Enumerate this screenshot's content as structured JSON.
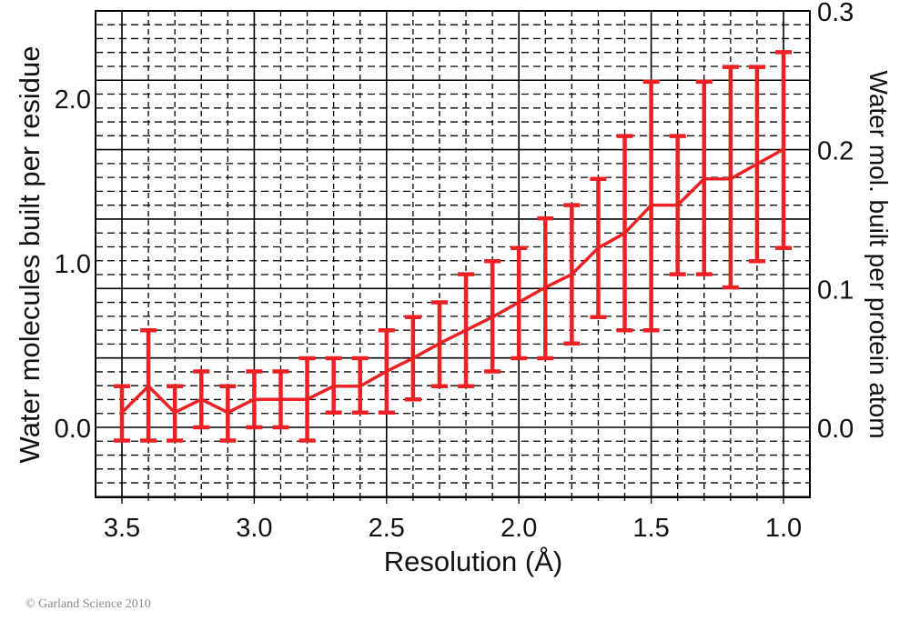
{
  "chart_data": {
    "type": "line",
    "title": "",
    "xlabel": "Resolution (Å)",
    "ylabel": "Water molecules built per residue",
    "ylabel_right": "Water mol. built per protein atom",
    "x_reversed": true,
    "xlim": [
      3.6,
      0.9
    ],
    "ylim": [
      -0.43,
      2.53
    ],
    "ylim_right": [
      -0.05,
      0.3
    ],
    "x_ticks": [
      "3.5",
      "3.0",
      "2.5",
      "2.0",
      "1.5",
      "1.0"
    ],
    "y_ticks_left": [
      "0.0",
      "1.0",
      "2.0"
    ],
    "y_ticks_right": [
      "0.0",
      "0.1",
      "0.2",
      "0.3"
    ],
    "grid": true,
    "series": [
      {
        "name": "Water molecules built per residue",
        "color": "#ED2024",
        "x": [
          3.5,
          3.4,
          3.3,
          3.2,
          3.1,
          3.0,
          2.9,
          2.8,
          2.7,
          2.6,
          2.5,
          2.4,
          2.3,
          2.2,
          2.1,
          2.0,
          1.9,
          1.8,
          1.7,
          1.6,
          1.5,
          1.4,
          1.3,
          1.2,
          1.1,
          1.0
        ],
        "values": [
          0.09,
          0.25,
          0.09,
          0.17,
          0.09,
          0.17,
          0.17,
          0.17,
          0.25,
          0.25,
          0.34,
          0.42,
          0.51,
          0.59,
          0.67,
          0.76,
          0.85,
          0.93,
          1.09,
          1.18,
          1.35,
          1.35,
          1.51,
          1.51,
          1.6,
          1.69
        ],
        "error_low": [
          -0.08,
          -0.08,
          -0.08,
          0.0,
          -0.08,
          0.0,
          0.0,
          -0.08,
          0.09,
          0.09,
          0.09,
          0.17,
          0.25,
          0.25,
          0.34,
          0.42,
          0.42,
          0.51,
          0.67,
          0.59,
          0.59,
          0.93,
          0.93,
          0.85,
          1.01,
          1.09
        ],
        "error_high": [
          0.25,
          0.59,
          0.25,
          0.34,
          0.25,
          0.34,
          0.34,
          0.42,
          0.42,
          0.42,
          0.59,
          0.67,
          0.76,
          0.93,
          1.01,
          1.09,
          1.27,
          1.35,
          1.51,
          1.77,
          2.1,
          1.77,
          2.1,
          2.19,
          2.19,
          2.28
        ]
      }
    ]
  },
  "labels": {
    "ylabel_left": "Water molecules built per residue",
    "ylabel_right": "Water mol. built per protein atom",
    "xlabel": "Resolution (Å)",
    "copyright": "© Garland Science 2010"
  }
}
